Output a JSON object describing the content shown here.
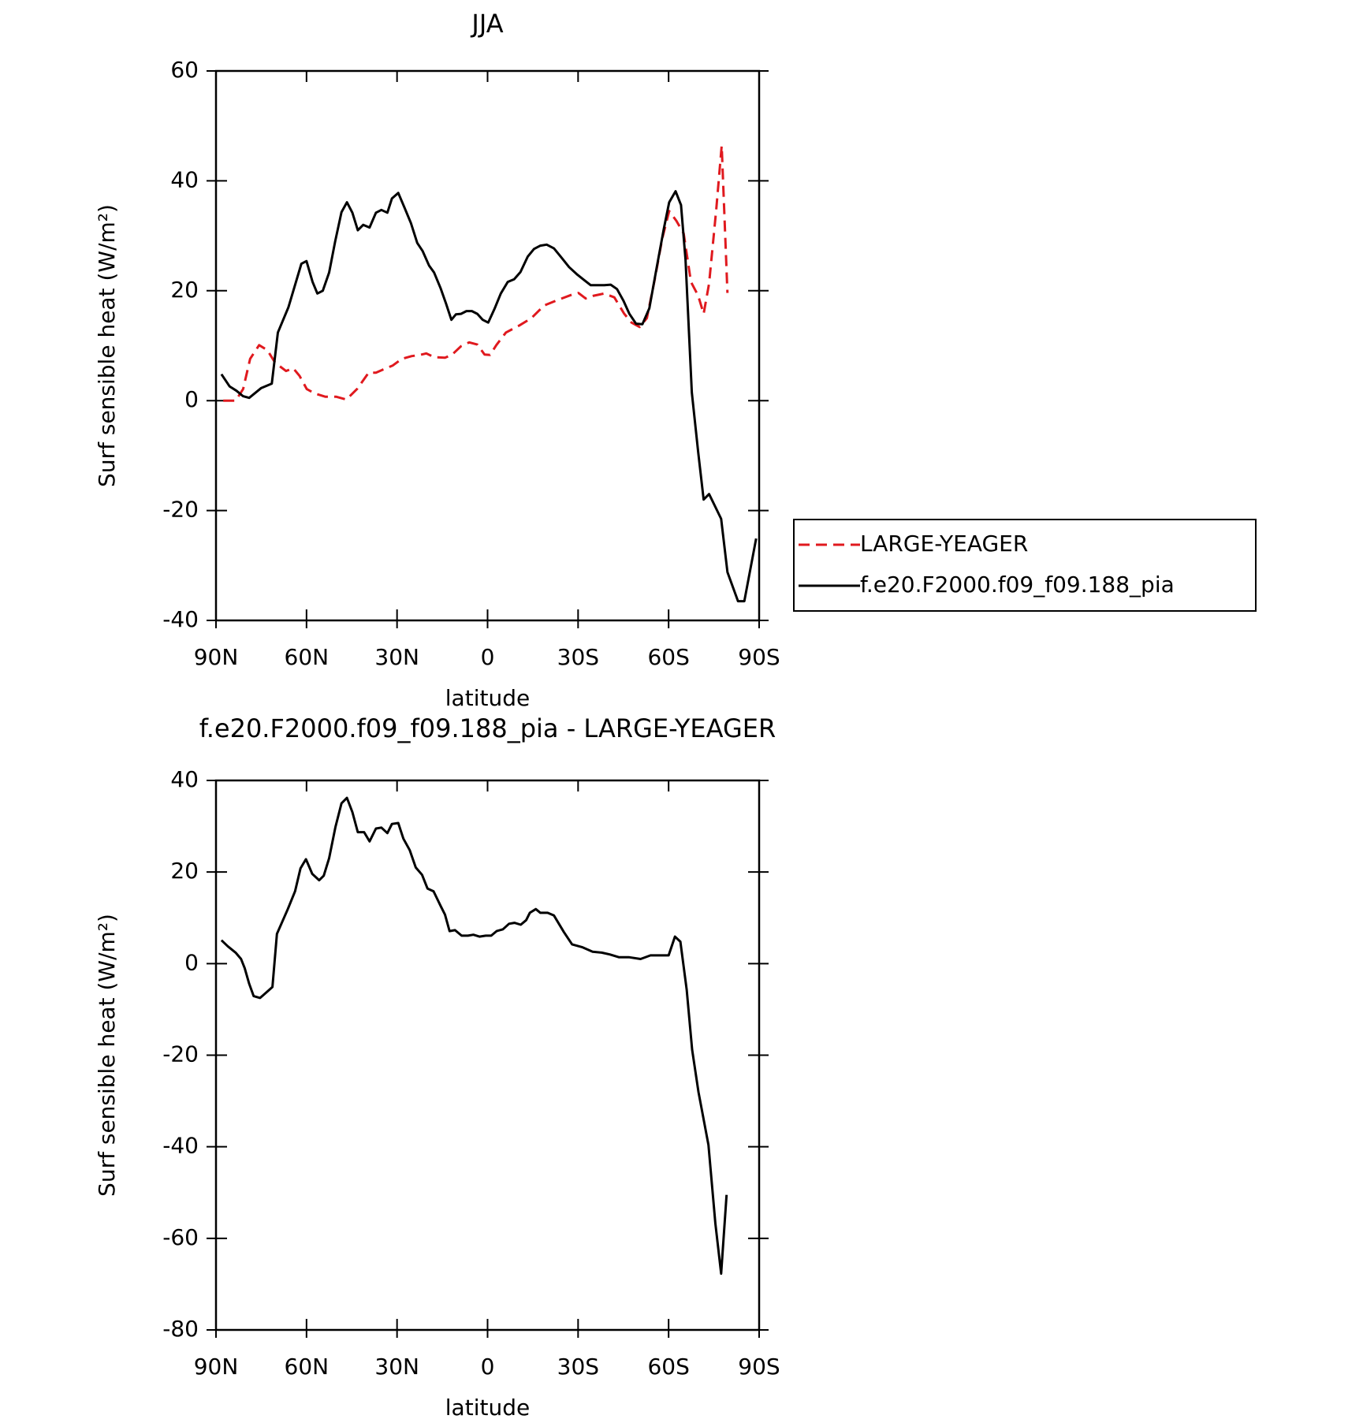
{
  "chart_data": [
    {
      "type": "line",
      "title": "JJA",
      "xlabel": "latitude",
      "ylabel": "Surf sensible heat (W/m²)",
      "xlim": [
        90,
        -90
      ],
      "xticks": [
        {
          "value": 90,
          "label": "90N"
        },
        {
          "value": 60,
          "label": "60N"
        },
        {
          "value": 30,
          "label": "30N"
        },
        0,
        {
          "value": -30,
          "label": "30S"
        },
        {
          "value": -60,
          "label": "60S"
        },
        {
          "value": -90,
          "label": "90S"
        }
      ],
      "ylim": [
        -40,
        60
      ],
      "yticks": [
        -40,
        -20,
        0,
        20,
        40,
        60
      ],
      "legend": "right",
      "series": [
        {
          "name": "LARGE-YEAGER",
          "color": "#e0191e",
          "dashed": true,
          "x": [
            87.6,
            83.5,
            81,
            78.7,
            75.7,
            73,
            70.4,
            66.8,
            64.4,
            62.3,
            59.9,
            57.3,
            53.7,
            50.1,
            46.8,
            43.3,
            39.4,
            37,
            34.9,
            31.4,
            28.4,
            25.1,
            22.4,
            20.3,
            17.7,
            14.1,
            11.7,
            8.8,
            6.1,
            3.4,
            1,
            -0.8,
            -2.9,
            -6.1,
            -10.6,
            -14.5,
            -18.7,
            -23.2,
            -28,
            -30.1,
            -32.5,
            -35.2,
            -38.7,
            -42,
            -45.3,
            -47.7,
            -50.4,
            -52.8,
            -55.5,
            -57.9,
            -60.2,
            -62.6,
            -65,
            -67.4,
            -69.8,
            -71.6,
            -73.4,
            -75.8,
            -77.6,
            -79.5
          ],
          "values": [
            0,
            0,
            2.1,
            7.6,
            10.1,
            9.2,
            6.9,
            5.4,
            5.9,
            4.5,
            2.1,
            1.3,
            0.7,
            0.7,
            0.2,
            2.1,
            5.1,
            5.1,
            5.6,
            6.4,
            7.6,
            8.1,
            8.3,
            8.6,
            7.9,
            7.8,
            8.4,
            9.9,
            10.6,
            10.2,
            8.4,
            8.3,
            10.1,
            12.4,
            13.7,
            15,
            17.3,
            18.3,
            19.3,
            19.6,
            18.6,
            19.1,
            19.5,
            18.8,
            15.8,
            14.2,
            13.4,
            15,
            22.3,
            29.5,
            34.5,
            32.7,
            30.4,
            21.6,
            19.1,
            15.8,
            21.3,
            34.8,
            46.4,
            19.6
          ]
        },
        {
          "name": "f.e20.F2000.f09_f09.188_pia",
          "color": "#000000",
          "dashed": false,
          "x": [
            88.2,
            85.5,
            83.2,
            81,
            79,
            75,
            71.5,
            69.5,
            66,
            61.7,
            60,
            58,
            56.4,
            54.6,
            52.5,
            50.5,
            48.4,
            46.6,
            44.8,
            43,
            41.2,
            39.1,
            37,
            35.2,
            33.2,
            31.7,
            29.6,
            27.5,
            25.4,
            23.3,
            21.5,
            19.4,
            17.7,
            15.6,
            13.8,
            12,
            10.5,
            8.8,
            7,
            5.2,
            3.4,
            1.6,
            -0.2,
            -2.3,
            -4.4,
            -6.7,
            -8.8,
            -10.9,
            -13.3,
            -15.4,
            -17.5,
            -19.6,
            -22,
            -24.4,
            -27,
            -29.8,
            -32.1,
            -34.2,
            -36.6,
            -38.7,
            -40.8,
            -42.9,
            -45,
            -47,
            -49.2,
            -51.3,
            -53.6,
            -56,
            -58.4,
            -60.2,
            -62.3,
            -64.1,
            -65.6,
            -67.7,
            -69.8,
            -71.6,
            -73.4,
            -75.2,
            -77.4,
            -79.5,
            -83,
            -85.1,
            -89
          ],
          "values": [
            4.8,
            2.6,
            1.8,
            0.8,
            0.5,
            2.3,
            3.1,
            12.4,
            17,
            24.9,
            25.4,
            21.6,
            19.5,
            20,
            23.3,
            29,
            34.3,
            36.1,
            34.2,
            31,
            32,
            31.5,
            34.2,
            34.7,
            34.2,
            36.8,
            37.8,
            35.1,
            32.3,
            28.7,
            27.2,
            24.6,
            23.3,
            20.5,
            17.7,
            14.7,
            15.7,
            15.8,
            16.3,
            16.3,
            15.8,
            14.7,
            14.2,
            16.7,
            19.5,
            21.6,
            22.1,
            23.4,
            26.2,
            27.6,
            28.2,
            28.4,
            27.7,
            26.1,
            24.3,
            22.9,
            21.9,
            21,
            21,
            21,
            21.1,
            20.3,
            18.2,
            15.8,
            14,
            13.9,
            16.8,
            24.1,
            31.2,
            36.1,
            38.1,
            35.6,
            25.7,
            1.5,
            -9.4,
            -18,
            -17,
            -19,
            -21.5,
            -31.2,
            -36.5,
            -36.5,
            -25.1
          ]
        }
      ]
    },
    {
      "type": "line",
      "title": "f.e20.F2000.f09_f09.188_pia - LARGE-YEAGER",
      "xlabel": "latitude",
      "ylabel": "Surf sensible heat (W/m²)",
      "xlim": [
        90,
        -90
      ],
      "xticks": [
        {
          "value": 90,
          "label": "90N"
        },
        {
          "value": 60,
          "label": "60N"
        },
        {
          "value": 30,
          "label": "30N"
        },
        0,
        {
          "value": -30,
          "label": "30S"
        },
        {
          "value": -60,
          "label": "60S"
        },
        {
          "value": -90,
          "label": "90S"
        }
      ],
      "ylim": [
        -80,
        40
      ],
      "yticks": [
        -80,
        -60,
        -40,
        -20,
        0,
        20,
        40
      ],
      "color": "#000000",
      "x": [
        88.2,
        86.1,
        83.5,
        81.7,
        80.5,
        79,
        77.5,
        75.4,
        73.3,
        71.3,
        69.8,
        66.2,
        63.8,
        62,
        60.2,
        58.1,
        55.8,
        54.3,
        52.5,
        50.4,
        48.4,
        46.6,
        44.8,
        43,
        40.9,
        39.1,
        37,
        35.2,
        33.2,
        31.7,
        29.6,
        27.9,
        25.8,
        23.8,
        21.7,
        19.9,
        17.9,
        15.5,
        14.1,
        12.6,
        10.8,
        8.6,
        6.5,
        4.7,
        2.7,
        0.6,
        -1.2,
        -3,
        -5.1,
        -7.1,
        -8.9,
        -11,
        -12.8,
        -14,
        -16,
        -17.5,
        -19.9,
        -22,
        -25.3,
        -28,
        -31.3,
        -34.8,
        -37.8,
        -40.5,
        -43.5,
        -46.8,
        -50.7,
        -54,
        -58.2,
        -60,
        -62.1,
        -63.9,
        -66,
        -67.8,
        -69.9,
        -73.2,
        -75.5,
        -77.4,
        -79.2
      ],
      "values": [
        5.1,
        3.8,
        2.4,
        1,
        -1,
        -4.4,
        -7.1,
        -7.5,
        -6.3,
        -5.1,
        6.5,
        11.9,
        15.8,
        20.8,
        22.8,
        19.6,
        18.2,
        19.2,
        23,
        29.9,
        35,
        36.2,
        33.1,
        28.7,
        28.7,
        26.7,
        29.5,
        29.7,
        28.5,
        30.5,
        30.7,
        27.3,
        24.8,
        21,
        19.4,
        16.4,
        15.8,
        12.5,
        10.7,
        7.1,
        7.3,
        6.1,
        6.1,
        6.3,
        5.9,
        6.1,
        6.1,
        7.1,
        7.5,
        8.7,
        8.9,
        8.5,
        9.5,
        11.1,
        11.9,
        11.1,
        11.1,
        10.5,
        6.9,
        4.2,
        3.6,
        2.6,
        2.4,
        2,
        1.4,
        1.4,
        1,
        1.8,
        1.8,
        1.8,
        5.9,
        4.8,
        -5.7,
        -18.8,
        -28.1,
        -39.6,
        -56.8,
        -67.7,
        -50.5
      ]
    }
  ]
}
